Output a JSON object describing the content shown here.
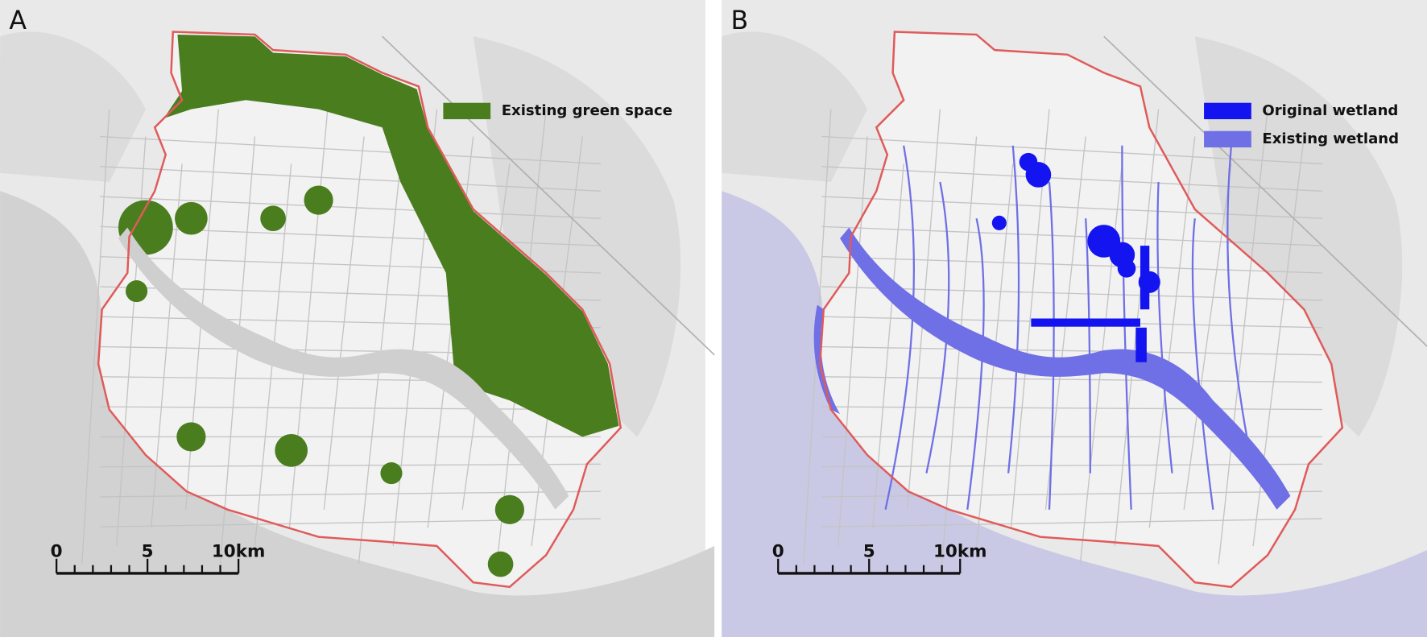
{
  "panels": [
    {
      "label": "A",
      "legend": [
        {
          "label": "Existing green space",
          "color": "#4a7d1e"
        }
      ],
      "scale_bar": {
        "labels": [
          "0",
          "5",
          "10km"
        ]
      }
    },
    {
      "label": "B",
      "legend": [
        {
          "label": "Original wetland",
          "color": "#1414f0"
        },
        {
          "label": "Existing wetland",
          "color": "#6f6fe6"
        }
      ],
      "scale_bar": {
        "labels": [
          "0",
          "5",
          "10km"
        ]
      }
    }
  ]
}
